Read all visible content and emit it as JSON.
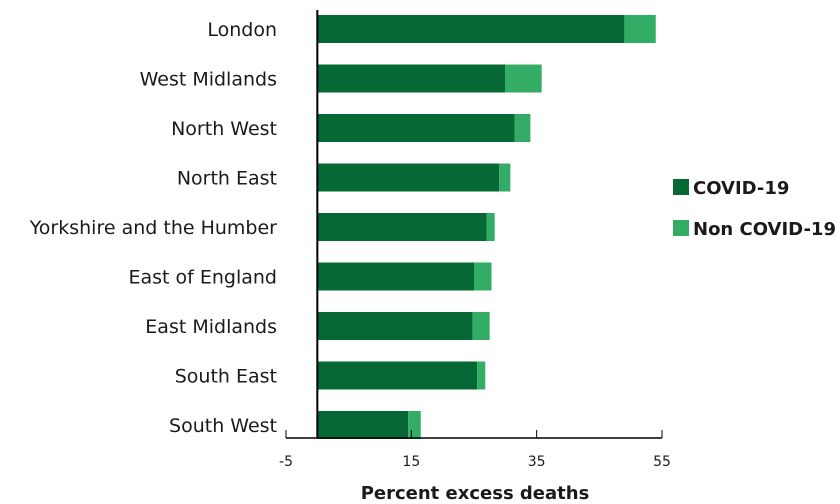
{
  "chart_data": {
    "type": "bar",
    "orientation": "horizontal",
    "stacked": true,
    "categories": [
      "London",
      "West Midlands",
      "North West",
      "North East",
      "Yorkshire and the Humber",
      "East of England",
      "East Midlands",
      "South East",
      "South West"
    ],
    "series": [
      {
        "name": "COVID-19",
        "color": "#056835",
        "values": [
          49,
          30,
          31.5,
          29,
          27,
          25,
          24.8,
          25.5,
          14.5
        ]
      },
      {
        "name": "Non COVID-19",
        "color": "#33ad66",
        "values": [
          5,
          5.8,
          2.5,
          1.8,
          1.3,
          2.8,
          2.7,
          1.3,
          2
        ]
      }
    ],
    "xlabel": "Percent excess deaths",
    "ylabel": "",
    "xlim": [
      -5,
      55
    ],
    "xticks": [
      -5,
      15,
      35,
      55
    ],
    "grid": false,
    "legend_position": "right"
  }
}
